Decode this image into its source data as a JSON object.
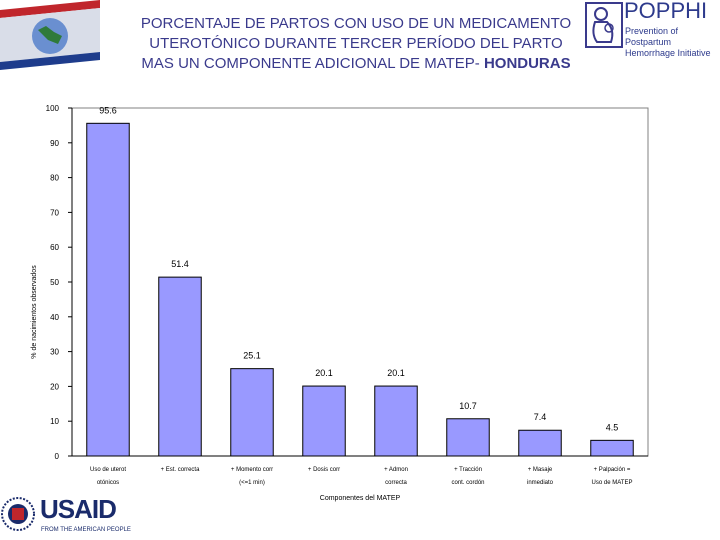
{
  "header": {
    "title_line1": "PORCENTAJE DE PARTOS CON USO DE UN MEDICAMENTO",
    "title_line2": "UTEROTÓNICO DURANTE TERCER PERÍODO DEL PARTO",
    "title_line3": "MAS UN COMPONENTE ADICIONAL DE MATEP-",
    "title_highlight": "HONDURAS"
  },
  "logos": {
    "popphi_name": "POPPHI",
    "popphi_tag1": "Prevention of Postpartum",
    "popphi_tag2": "Hemorrhage Initiative",
    "usaid_name": "USAID",
    "usaid_sub": "FROM THE AMERICAN PEOPLE"
  },
  "colors": {
    "bar": "#9999ff",
    "title": "#3a3a8c"
  },
  "chart_data": {
    "type": "bar",
    "categories": [
      [
        "Uso de uterot",
        "otónicos"
      ],
      [
        "+ Est. correcta",
        ""
      ],
      [
        "+ Momento corr",
        "(<=1 min)"
      ],
      [
        "+ Dosis corr",
        ""
      ],
      [
        "+ Admon",
        "correcta"
      ],
      [
        "+ Tracción",
        "cont. cordón"
      ],
      [
        "+ Masaje",
        "inmediato"
      ],
      [
        "+ Palpación =",
        "Uso de MATEP"
      ]
    ],
    "values": [
      95.6,
      51.4,
      25.1,
      20.1,
      20.1,
      10.7,
      7.4,
      4.5
    ],
    "value_labels": [
      "95.6",
      "51.4",
      "25.1",
      "20.1",
      "20.1",
      "10.7",
      "7.4",
      "4.5"
    ],
    "xlabel": "Componentes del MATEP",
    "ylabel": "% de nacimientos observados",
    "yticks": [
      "0",
      "10",
      "20",
      "30",
      "40",
      "50",
      "60",
      "70",
      "80",
      "90",
      "100"
    ],
    "ylim": [
      0,
      100
    ],
    "grid": false
  }
}
